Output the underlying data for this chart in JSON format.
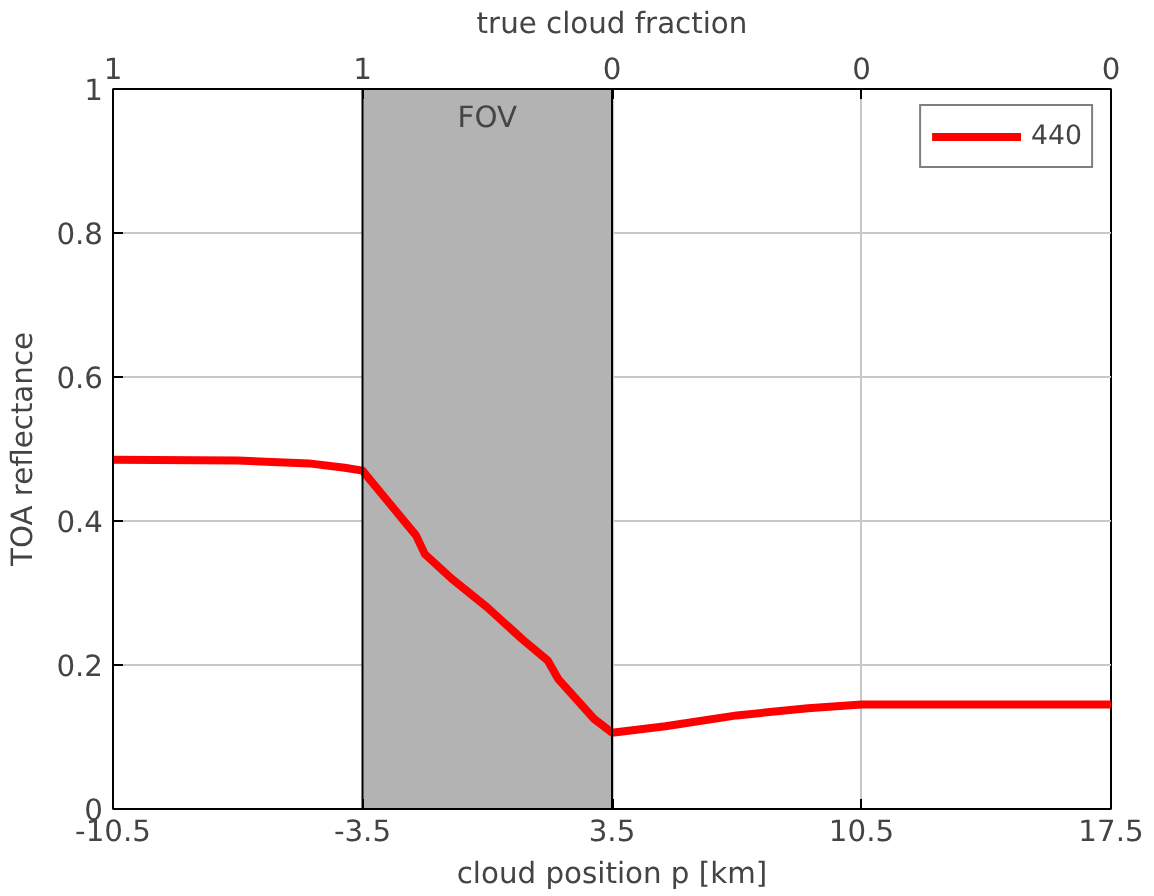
{
  "chart_data": {
    "type": "line",
    "xlabel": "cloud position p [km]",
    "ylabel": "TOA reflectance",
    "x2label": "true cloud fraction",
    "x": [
      -10.5,
      -7,
      -5,
      -4,
      -3.5,
      -3,
      -2,
      -1.75,
      -1,
      0,
      1,
      1.7,
      2,
      3,
      3.5,
      5,
      7,
      9,
      10.5,
      14,
      17.5
    ],
    "series": [
      {
        "name": "440",
        "color": "#ff0000",
        "values": [
          0.485,
          0.484,
          0.48,
          0.474,
          0.47,
          0.44,
          0.38,
          0.354,
          0.32,
          0.28,
          0.235,
          0.206,
          0.18,
          0.125,
          0.106,
          0.115,
          0.13,
          0.14,
          0.145,
          0.145,
          0.145
        ]
      }
    ],
    "xlim": [
      -10.5,
      17.5
    ],
    "xticks": [
      -10.5,
      -3.5,
      3.5,
      10.5,
      17.5
    ],
    "annotations": [
      "1",
      "1",
      "0",
      "0",
      "0"
    ],
    "ylim": [
      0,
      1
    ],
    "yticks": [
      0,
      0.2,
      0.4,
      0.6,
      0.8,
      1
    ],
    "bands": [
      {
        "axis": "x",
        "from": -3.5,
        "to": 3.5,
        "label": "FOV",
        "color": "#b3b3b3"
      }
    ],
    "grid": true,
    "legend": "top right",
    "line_style": "solid",
    "marker": "none"
  }
}
